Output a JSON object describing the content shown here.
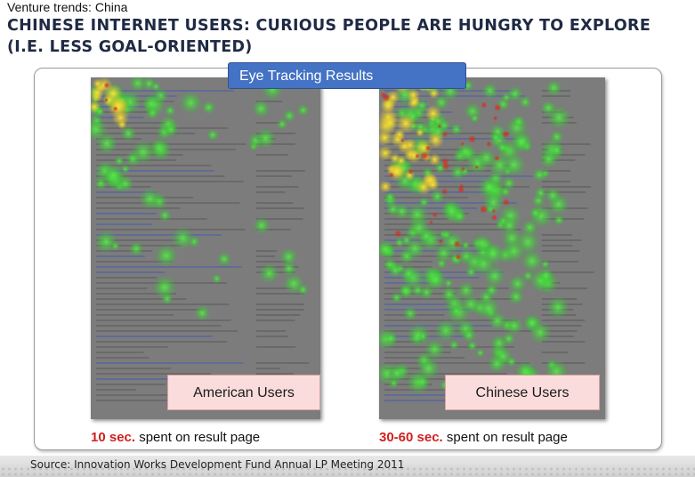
{
  "header": {
    "kicker": "Venture trends: China",
    "title": "CHINESE INTERNET USERS: CURIOUS PEOPLE ARE HUNGRY TO EXPLORE (I.E. LESS GOAL-ORIENTED)"
  },
  "panel": {
    "tag": "Eye Tracking Results"
  },
  "left": {
    "label": "American Users",
    "time": "10 sec.",
    "suffix": " spent on result page"
  },
  "right": {
    "label": "Chinese Users",
    "time": "30-60 sec.",
    "suffix": " spent on result page"
  },
  "footer": {
    "source": "Source: Innovation Works Development Fund Annual LP Meeting 2011"
  },
  "colors": {
    "title": "#1f2a44",
    "tag_bg": "#4472c4",
    "label_bg": "#fbdcdc",
    "time_accent": "#d12020",
    "heat_cool": "#3fd23f",
    "heat_warm": "#f2d22b",
    "heat_hot": "#e8321e"
  }
}
